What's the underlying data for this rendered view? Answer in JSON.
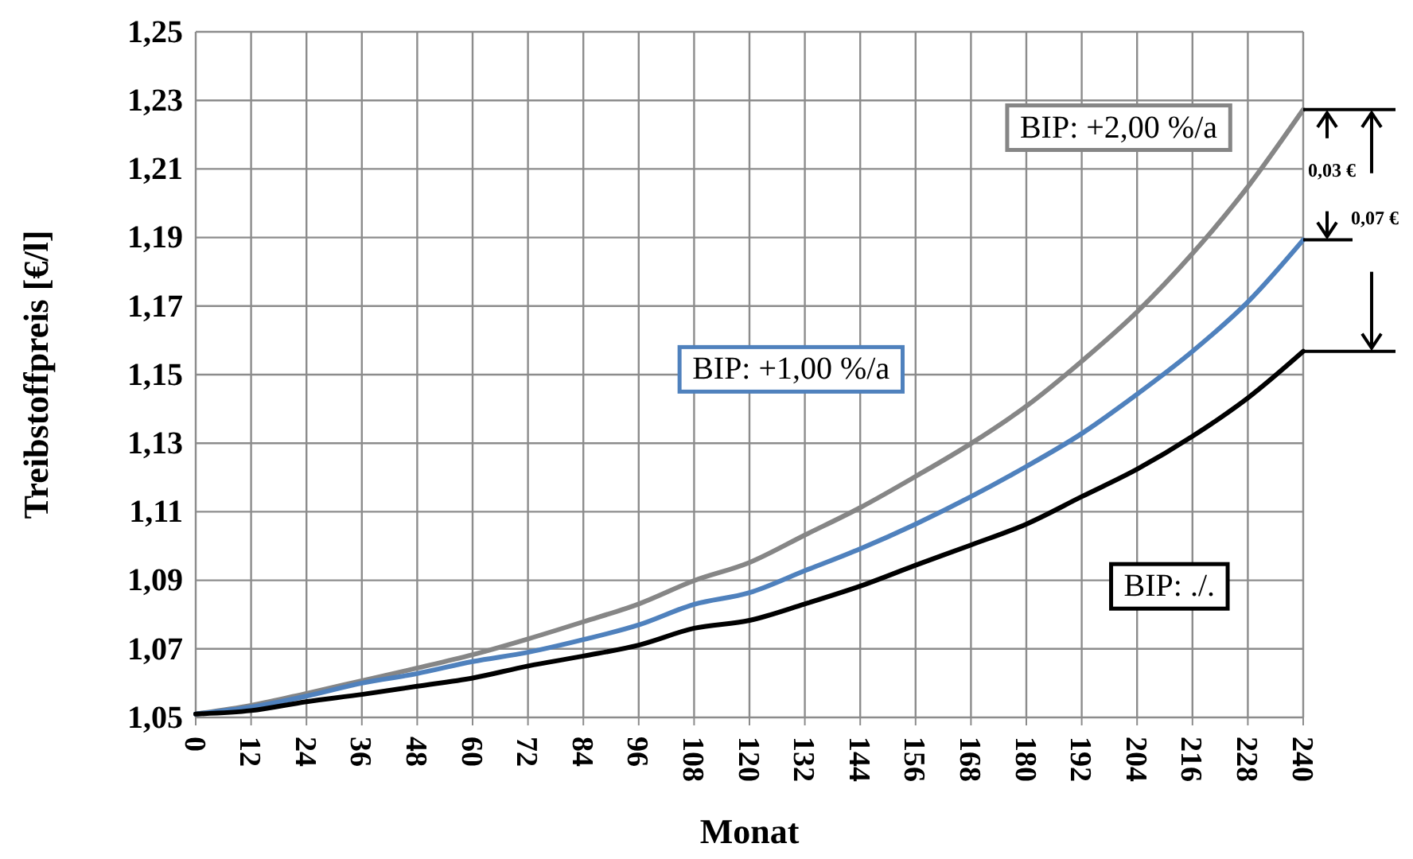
{
  "chart_data": {
    "type": "line",
    "xlabel": "Monat",
    "ylabel": "Treibstoffpreis [€/l]",
    "x": [
      0,
      12,
      24,
      36,
      48,
      60,
      72,
      84,
      96,
      108,
      120,
      132,
      144,
      156,
      168,
      180,
      192,
      204,
      216,
      228,
      240
    ],
    "series": [
      {
        "name": "BIP: +2,00 %/a",
        "color": "#868686",
        "values": [
          1.051,
          1.0535,
          1.057,
          1.0607,
          1.0644,
          1.0683,
          1.0729,
          1.0779,
          1.0831,
          1.0899,
          1.0952,
          1.1032,
          1.1112,
          1.1203,
          1.1299,
          1.1408,
          1.1539,
          1.1683,
          1.1853,
          1.2048,
          1.2273
        ]
      },
      {
        "name": "BIP: +1,00 %/a",
        "color": "#4f81bd",
        "values": [
          1.051,
          1.053,
          1.0562,
          1.06,
          1.0628,
          1.0663,
          1.069,
          1.0727,
          1.077,
          1.083,
          1.0864,
          1.0928,
          1.0992,
          1.1064,
          1.1144,
          1.1232,
          1.1328,
          1.1443,
          1.1568,
          1.1712,
          1.1893
        ]
      },
      {
        "name": "BIP: ./.",
        "color": "#000000",
        "values": [
          1.051,
          1.052,
          1.0546,
          1.0567,
          1.0591,
          1.0615,
          1.065,
          1.0679,
          1.0711,
          1.076,
          1.0783,
          1.0831,
          1.0883,
          1.0944,
          1.1003,
          1.1064,
          1.1144,
          1.1224,
          1.132,
          1.1432,
          1.1568
        ]
      }
    ],
    "xlim": [
      0,
      240
    ],
    "xticks": [
      0,
      12,
      24,
      36,
      48,
      60,
      72,
      84,
      96,
      108,
      120,
      132,
      144,
      156,
      168,
      180,
      192,
      204,
      216,
      228,
      240
    ],
    "ylim": [
      1.05,
      1.25
    ],
    "yticks": [
      {
        "value": 1.05,
        "label": "1,05"
      },
      {
        "value": 1.07,
        "label": "1,07"
      },
      {
        "value": 1.09,
        "label": "1,09"
      },
      {
        "value": 1.11,
        "label": "1,11"
      },
      {
        "value": 1.13,
        "label": "1,13"
      },
      {
        "value": 1.15,
        "label": "1,15"
      },
      {
        "value": 1.17,
        "label": "1,17"
      },
      {
        "value": 1.19,
        "label": "1,19"
      },
      {
        "value": 1.21,
        "label": "1,21"
      },
      {
        "value": 1.23,
        "label": "1,23"
      },
      {
        "value": 1.25,
        "label": "1,25"
      }
    ],
    "grid": true,
    "legend": false,
    "marker": "none",
    "line_style": "solid",
    "annotations": [
      "0,03 €",
      "0,07 €"
    ]
  }
}
